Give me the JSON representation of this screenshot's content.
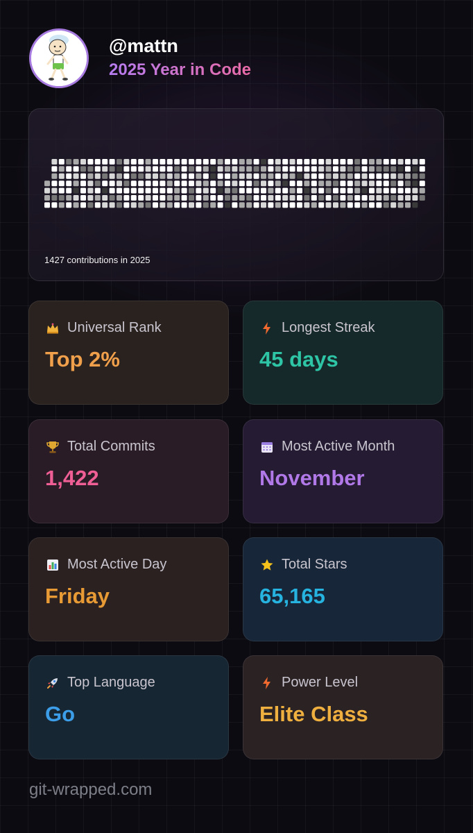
{
  "header": {
    "username": "@mattn",
    "subtitle": "2025 Year in Code"
  },
  "contributions": {
    "caption": "1427 contributions in 2025",
    "weeks": 53,
    "days_per_week": 7,
    "levels_note": "grayscale intensity 0-4",
    "pattern_seed": "1427"
  },
  "stats": [
    {
      "label": "Universal Rank",
      "value": "Top 2%",
      "icon": "crown-icon",
      "value_color": "#f0a04b",
      "bg": "#2a221f"
    },
    {
      "label": "Longest Streak",
      "value": "45 days",
      "icon": "lightning-icon",
      "value_color": "#2ec4a6",
      "bg": "#16292a"
    },
    {
      "label": "Total Commits",
      "value": "1,422",
      "icon": "trophy-icon",
      "value_color": "#ef5f95",
      "bg": "#2a1c26"
    },
    {
      "label": "Most Active Month",
      "value": "November",
      "icon": "calendar-icon",
      "value_color": "#b178e8",
      "bg": "#251c33"
    },
    {
      "label": "Most Active Day",
      "value": "Friday",
      "icon": "bar-chart-icon",
      "value_color": "#e89a35",
      "bg": "#2a2120"
    },
    {
      "label": "Total Stars",
      "value": "65,165",
      "icon": "star-icon",
      "value_color": "#26b3df",
      "bg": "#172638"
    },
    {
      "label": "Top Language",
      "value": "Go",
      "icon": "rocket-icon",
      "value_color": "#3c9ee8",
      "bg": "#172633"
    },
    {
      "label": "Power Level",
      "value": "Elite Class",
      "icon": "lightning-icon",
      "value_color": "#f0b040",
      "bg": "#2b2224"
    }
  ],
  "footer": {
    "site": "git-wrapped.com"
  }
}
